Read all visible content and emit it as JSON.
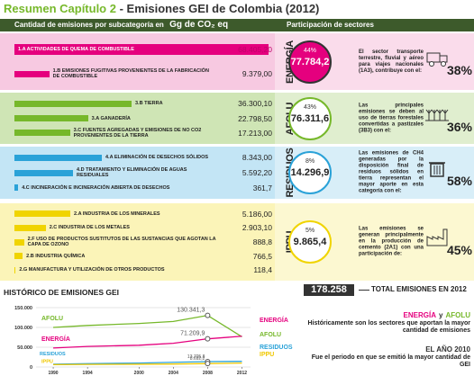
{
  "title_prefix": "Resumen Capítulo 2",
  "title_main": "- Emisiones GEI de Colombia (2012)",
  "header": {
    "left": "Cantidad de emisiones por subcategoría en",
    "unit": "Gg de CO₂ eq",
    "right": "Participación de sectores"
  },
  "sectors": [
    {
      "name": "ENERGÍA",
      "color": "#e5007e",
      "tint": "#f7c9e1",
      "items": [
        {
          "label": "1.A ACTIVIDADES DE QUEMA DE COMBUSTIBLE",
          "value": 68405.2,
          "value_label": "68.405,20"
        },
        {
          "label": "1.B EMISIONES FUGITIVAS PROVENIENTES DE LA FABRICACIÓN DE COMBUSTIBLE",
          "value": 9379.0,
          "value_label": "9.379,00"
        }
      ],
      "percent": "44%",
      "total": "77.784,2",
      "text": "El sector transporte terrestre, fluvial y aéreo para viajes nacionales (1A3), contribuye con el:",
      "share": "38%"
    },
    {
      "name": "AFOLU",
      "color": "#76b82a",
      "tint": "#cfe5b5",
      "items": [
        {
          "label": "3.B TIERRA",
          "value": 36300.1,
          "value_label": "36.300,10"
        },
        {
          "label": "3.A GANADERÍA",
          "value": 22798.5,
          "value_label": "22.798,50"
        },
        {
          "label": "3.C FUENTES AGREGADAS Y EMISIONES DE NO CO2 PROVENIENTES DE LA TIERRA",
          "value": 17213.0,
          "value_label": "17.213,00"
        }
      ],
      "percent": "43%",
      "total": "76.311,6",
      "text": "Las principales emisiones se deben al uso de tierras forestales convertidas a pastizales (3B3) con el:",
      "share": "36%"
    },
    {
      "name": "RESIDUOS",
      "color": "#2aa2d8",
      "tint": "#c3e5f5",
      "items": [
        {
          "label": "4.A ELIMINACIÓN DE DESECHOS SÓLIDOS",
          "value": 8343.0,
          "value_label": "8.343,00"
        },
        {
          "label": "4.D TRATAMIENTO Y ELIMINACIÓN DE AGUAS RESIDUALES",
          "value": 5592.2,
          "value_label": "5.592,20"
        },
        {
          "label": "4.C INCINERACIÓN E INCINERACIÓN ABIERTA DE DESECHOS",
          "value": 361.7,
          "value_label": "361,7"
        }
      ],
      "percent": "8%",
      "total": "14.296,9",
      "text": "Las emisiones de CH4 generadas por la disposición final de residuos sólidos en tierra representan el mayor aporte en esta categoría con el:",
      "share": "58%"
    },
    {
      "name": "IPPU",
      "color": "#f0d400",
      "tint": "#fbf4b8",
      "items": [
        {
          "label": "2.A INDUSTRIA DE LOS MINERALES",
          "value": 5186.0,
          "value_label": "5.186,00"
        },
        {
          "label": "2.C INDUSTRIA DE LOS METALES",
          "value": 2903.1,
          "value_label": "2.903,10"
        },
        {
          "label": "2.F USO DE PRODUCTOS SUSTITUTOS DE LAS SUSTANCIAS QUE AGOTAN LA CAPA DE OZONO",
          "value": 888.8,
          "value_label": "888,8"
        },
        {
          "label": "2.B INDUSTRIA QUÍMICA",
          "value": 766.5,
          "value_label": "766,5"
        },
        {
          "label": "2.G MANUFACTURA Y UTILIZACIÓN DE OTROS PRODUCTOS",
          "value": 118.4,
          "value_label": "118,4"
        }
      ],
      "percent": "5%",
      "total": "9.865,4",
      "text": "Las emisiones se generan principalmente en la producción de cemento (2A1) con una participación de:",
      "share": "45%"
    }
  ],
  "total": {
    "value": "178.258",
    "label": "TOTAL EMISIONES EN 2012"
  },
  "history": {
    "type": "line",
    "title": "HISTÓRICO DE EMISIONES GEI",
    "x": [
      1990,
      1994,
      2000,
      2004,
      2008,
      2012
    ],
    "xlim": [
      1988,
      2013
    ],
    "xticks": [
      1990,
      1994,
      2000,
      2004,
      2008,
      2012
    ],
    "ylim": [
      0,
      150000
    ],
    "yticks": [
      0,
      {
        "value": 50000,
        "label": "50.000"
      },
      {
        "value": 100000,
        "label": "100.000"
      },
      {
        "value": 150000,
        "label": "150.000"
      }
    ],
    "series": [
      {
        "name": "AFOLU",
        "color": "#76b82a",
        "values": [
          100000,
          105000,
          110000,
          115000,
          130341.3,
          76311.6
        ],
        "value_labels": [
          null,
          null,
          null,
          null,
          "130.341,3",
          null
        ]
      },
      {
        "name": "ENERGÍA",
        "color": "#e5007e",
        "values": [
          48000,
          52000,
          55000,
          60000,
          71209.9,
          77784.2
        ],
        "value_labels": [
          null,
          null,
          null,
          null,
          "71.209,9",
          null
        ]
      },
      {
        "name": "RESIDUOS",
        "color": "#2aa2d8",
        "values": [
          7000,
          8500,
          10000,
          12000,
          13705.8,
          14296.9
        ],
        "value_labels": [
          null,
          null,
          null,
          null,
          "13.705,8",
          null
        ]
      },
      {
        "name": "IPPU",
        "color": "#f0c800",
        "values": [
          6000,
          6500,
          7000,
          7500,
          8692.2,
          9865.4
        ],
        "value_labels": [
          null,
          null,
          null,
          null,
          "8.692,2",
          null
        ]
      }
    ]
  },
  "notes": [
    {
      "heading": [
        "ENERGÍA",
        "y",
        "AFOLU"
      ],
      "text": "Históricamente son los sectores que aportan la mayor cantidad de emisiones"
    },
    {
      "heading": [
        "EL AÑO 2010"
      ],
      "text": "Fue el periodo en que se emitió la mayor cantidad de GEI"
    }
  ]
}
